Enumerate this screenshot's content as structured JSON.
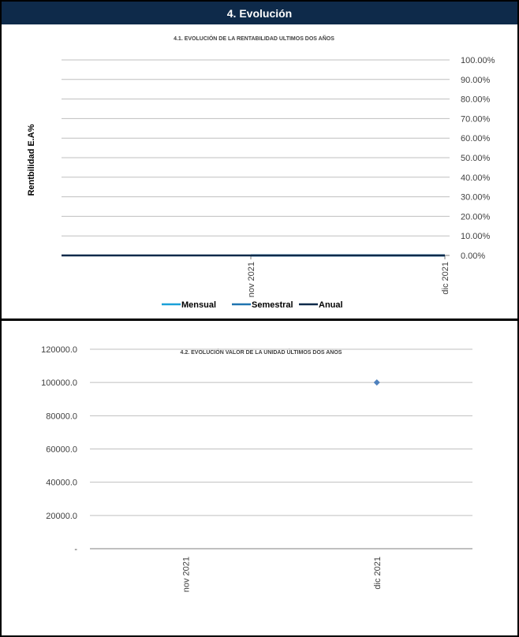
{
  "section": {
    "title": "4. Evolución"
  },
  "chart_data": [
    {
      "type": "line",
      "title": "4.1. EVOLUCIÓN DE LA RENTABILIDAD ULTIMOS DOS AÑOS",
      "xlabel": "",
      "ylabel": "Rentbilidad  E.A%",
      "categories": [
        "nov 2021",
        "dic 2021"
      ],
      "yticks": [
        "0.00%",
        "10.00%",
        "20.00%",
        "30.00%",
        "40.00%",
        "50.00%",
        "60.00%",
        "70.00%",
        "80.00%",
        "90.00%",
        "100.00%"
      ],
      "ylim": [
        0,
        100
      ],
      "y_axis_side": "right",
      "grid": true,
      "legend": "bottom",
      "series": [
        {
          "name": "Mensual",
          "color": "#1aa0d8",
          "values": [
            0,
            0
          ]
        },
        {
          "name": "Semestral",
          "color": "#1f74b0",
          "values": [
            0,
            0
          ]
        },
        {
          "name": "Anual",
          "color": "#0e2a4a",
          "values": [
            0,
            0
          ]
        }
      ]
    },
    {
      "type": "scatter",
      "title": "4.2. EVOLUCIÓN VALOR DE LA UNIDAD ÚLTIMOS DOS AÑOS",
      "xlabel": "",
      "ylabel": "",
      "categories": [
        "nov 2021",
        "dic 2021"
      ],
      "yticks": [
        "-",
        "20000.0",
        "40000.0",
        "60000.0",
        "80000.0",
        "100000.0",
        "120000.0"
      ],
      "ylim": [
        0,
        120000
      ],
      "grid": true,
      "series": [
        {
          "color": "#4f81bd",
          "values": [
            null,
            100000
          ]
        }
      ]
    }
  ]
}
